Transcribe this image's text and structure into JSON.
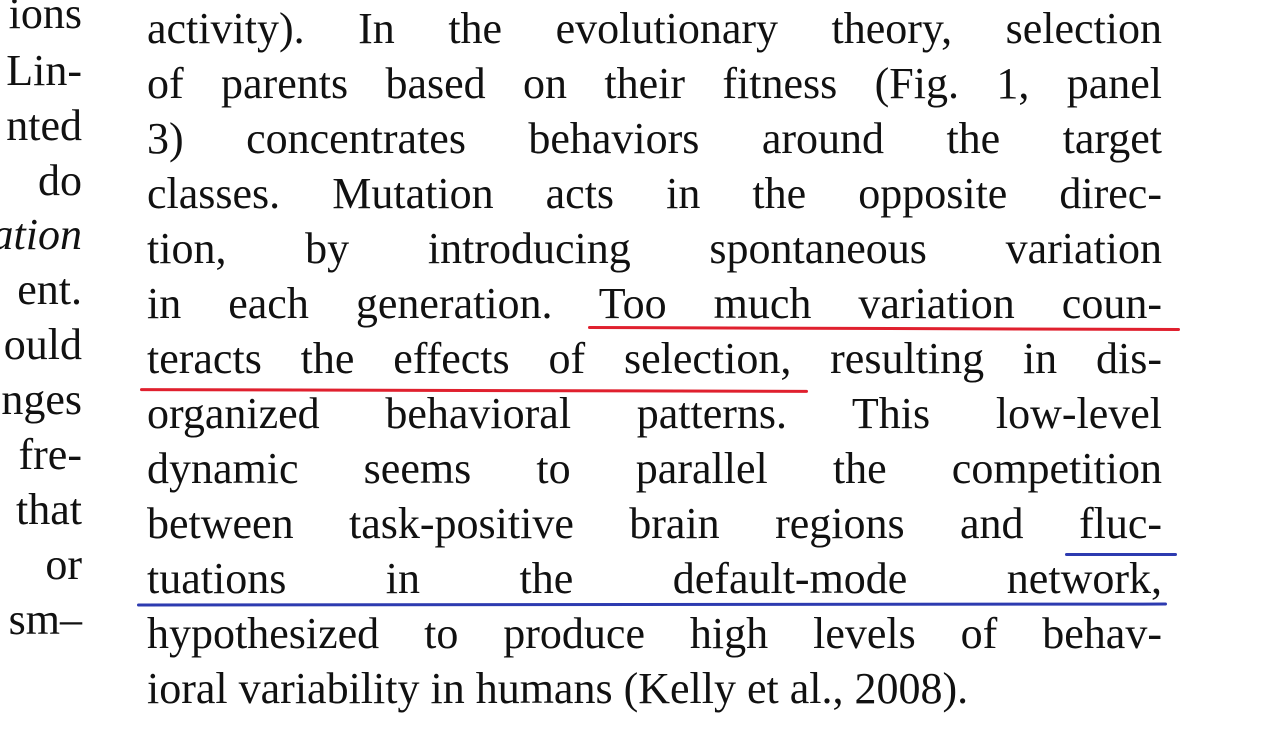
{
  "left_column": {
    "lines": [
      "ions",
      "Lin-",
      "nted",
      "do",
      "ation",
      "ent.",
      "ould",
      "nges",
      "fre-",
      "that",
      "or",
      "sm–"
    ]
  },
  "main_text": {
    "lines": [
      "activity). In the evolutionary theory, selection",
      "of parents based on their fitness (Fig. 1, panel",
      "3) concentrates behaviors around the target",
      "classes. Mutation acts in the opposite direc-",
      "tion, by introducing spontaneous variation",
      "in each generation. Too much variation coun-",
      "teracts the effects of selection, resulting in dis-",
      "organized behavioral patterns. This low-level",
      "dynamic seems to parallel the competition",
      "between task-positive brain regions and fluc-",
      "tuations in the default-mode network,",
      "hypothesized to produce high levels of behav-",
      "ioral variability in humans (Kelly et al., 2008)."
    ]
  },
  "annotations": {
    "red_color": "#e0202e",
    "blue_color": "#2d3bb0",
    "highlighted_phrase_red": "Too much variation counteracts the effects of selection,",
    "highlighted_phrase_blue": "fluctuations in the default-mode network,"
  }
}
